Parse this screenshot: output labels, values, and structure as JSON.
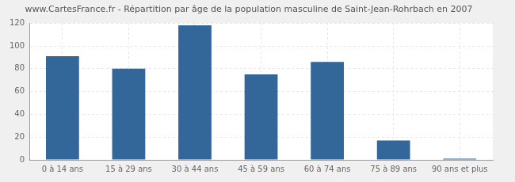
{
  "chart_data": {
    "type": "bar",
    "title": "www.CartesFrance.fr - Répartition par âge de la population masculine de Saint-Jean-Rohrbach en 2007",
    "categories": [
      "0 à 14 ans",
      "15 à 29 ans",
      "30 à 44 ans",
      "45 à 59 ans",
      "60 à 74 ans",
      "75 à 89 ans",
      "90 ans et plus"
    ],
    "values": [
      91,
      80,
      118,
      75,
      86,
      17,
      1
    ],
    "color": "#336699",
    "ylim": [
      0,
      120
    ],
    "yticks": [
      0,
      20,
      40,
      60,
      80,
      100,
      120
    ],
    "grid": true
  }
}
